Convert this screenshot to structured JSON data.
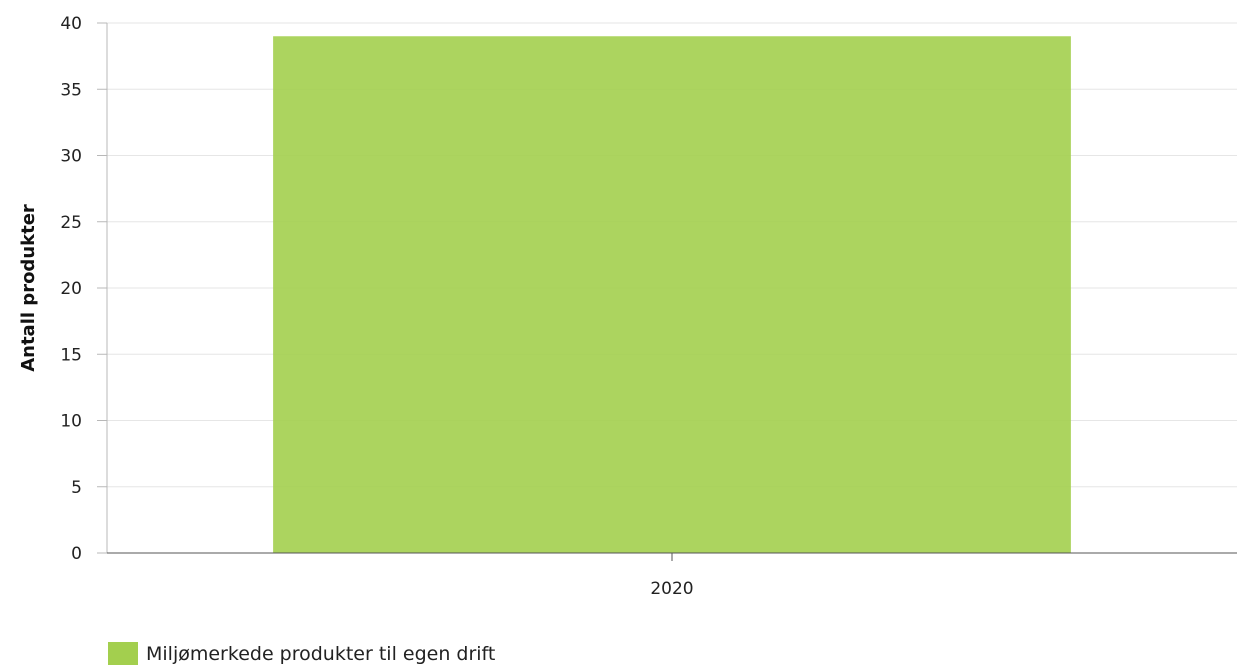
{
  "chart_data": {
    "type": "bar",
    "categories": [
      "2020"
    ],
    "series": [
      {
        "name": "Miljømerkede produkter til egen drift",
        "values": [
          39
        ],
        "color": "#a3cf4e"
      }
    ],
    "ylabel": "Antall produkter",
    "xlabel": "",
    "ylim": [
      0,
      40
    ],
    "yticks": [
      0,
      5,
      10,
      15,
      20,
      25,
      30,
      35,
      40
    ],
    "grid": true,
    "legend_position": "bottom-left"
  }
}
